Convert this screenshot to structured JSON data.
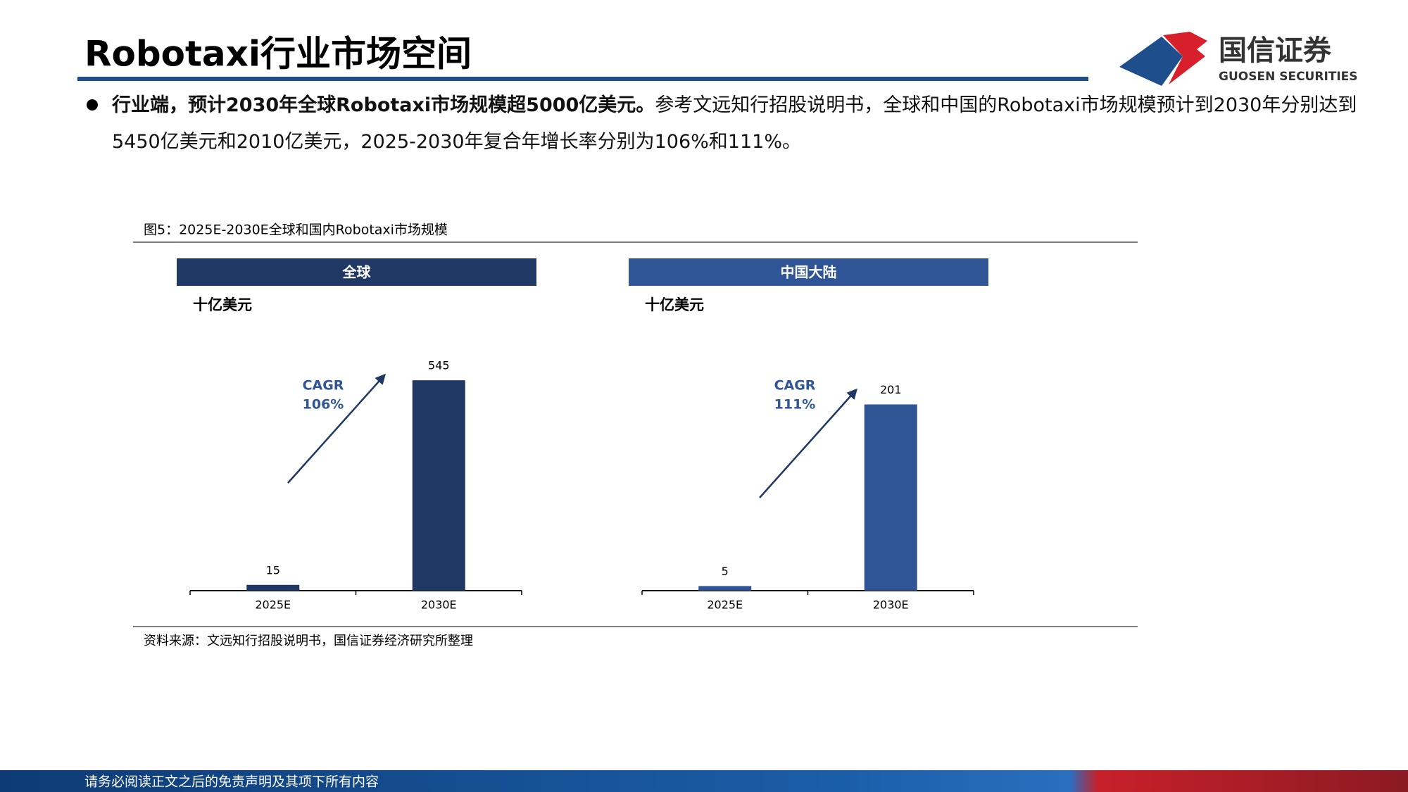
{
  "header": {
    "title": "Robotaxi行业市场空间",
    "logo_cn": "国信证券",
    "logo_en": "GUOSEN SECURITIES"
  },
  "bullet": {
    "bold": "行业端，预计2030年全球Robotaxi市场规模超5000亿美元。",
    "text": "参考文远知行招股说明书，全球和中国的Robotaxi市场规模预计到2030年分别达到5450亿美元和2010亿美元，2025-2030年复合年增长率分别为106%和111%。"
  },
  "figure": {
    "caption": "图5：2025E-2030E全球和国内Robotaxi市场规模",
    "source": "资料来源：文远知行招股说明书，国信证券经济研究所整理"
  },
  "chart_data": [
    {
      "type": "bar",
      "title": "全球",
      "y_label": "十亿美元",
      "categories": [
        "2025E",
        "2030E"
      ],
      "values": [
        15,
        545
      ],
      "color": "#203864",
      "ylim": [
        0,
        600
      ],
      "annotation": [
        "CAGR",
        "106%"
      ]
    },
    {
      "type": "bar",
      "title": "中国大陆",
      "y_label": "十亿美元",
      "categories": [
        "2025E",
        "2030E"
      ],
      "values": [
        5,
        201
      ],
      "color": "#2f5597",
      "ylim": [
        0,
        250
      ],
      "annotation": [
        "CAGR",
        "111%"
      ]
    }
  ],
  "footer": {
    "disclaimer": "请务必阅读正文之后的免责声明及其项下所有内容"
  }
}
